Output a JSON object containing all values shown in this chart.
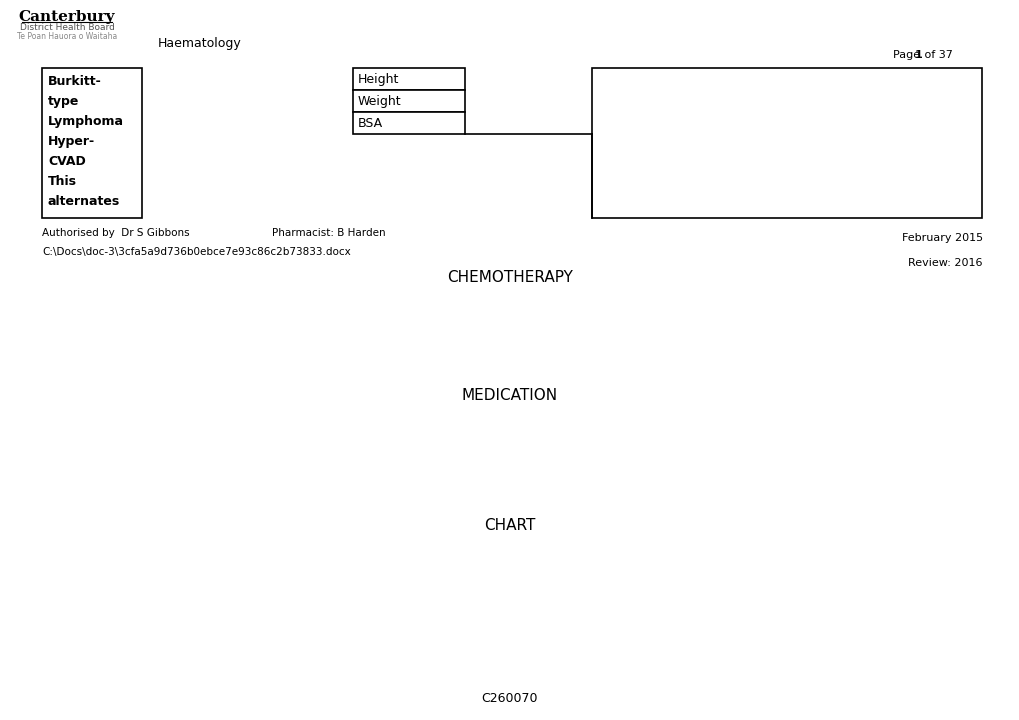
{
  "bg_color": "#ffffff",
  "title_text": "Canterbury",
  "subtitle1": "District Health Board",
  "subtitle2": "Te Poan Hauora o Waitaha",
  "haematology_text": "Haematology",
  "left_box_lines": [
    "Burkitt-",
    "type",
    "Lymphoma",
    "Hyper-",
    "CVAD",
    "This",
    "alternates"
  ],
  "height_label": "Height",
  "weight_label": "Weight",
  "bsa_label": "BSA",
  "authorised_text": "Authorised by  Dr S Gibbons",
  "pharmacist_text": "Pharmacist: B Harden",
  "filepath_text": "C:\\Docs\\doc-3\\3cfa5a9d736b0ebce7e93c86c2b73833.docx",
  "chemotherapy_text": "CHEMOTHERAPY",
  "medication_text": "MEDICATION",
  "chart_text": "CHART",
  "february_text": "February 2015",
  "review_text": "Review: 2016",
  "footer_text": "C260070"
}
